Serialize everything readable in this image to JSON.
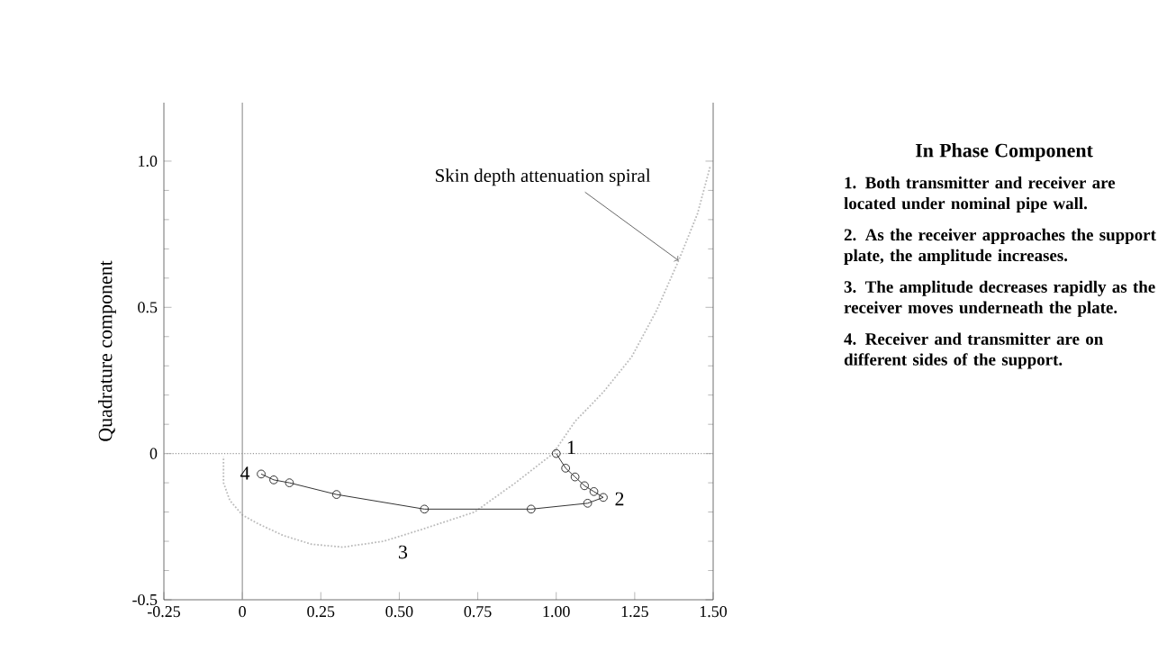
{
  "chart_data": {
    "type": "line",
    "ylabel": "Quadrature component",
    "xlim": [
      -0.25,
      1.5
    ],
    "ylim": [
      -0.5,
      1.2
    ],
    "xticks": [
      -0.25,
      0,
      0.25,
      {
        "value": 0.5,
        "label": "0.50"
      },
      0.75,
      {
        "value": 1,
        "label": "1.00"
      },
      1.25,
      {
        "value": 1.5,
        "label": "1.50"
      }
    ],
    "yticks": [
      -0.5,
      0,
      0.5,
      {
        "value": 1,
        "label": "1.0"
      }
    ],
    "grid": false,
    "series": [
      {
        "color": "#bbbbbb",
        "marker": "none",
        "line_style": "dotted",
        "x": [
          1.49,
          1.45,
          1.39,
          1.32,
          1.24,
          1.15,
          1.06,
          0.99,
          0.87,
          0.74,
          0.57,
          0.45,
          0.32,
          0.22,
          0.13,
          0.05,
          0.0,
          -0.04,
          -0.06,
          -0.06
        ],
        "values": [
          0.98,
          0.82,
          0.66,
          0.49,
          0.33,
          0.21,
          0.11,
          0.0,
          -0.1,
          -0.2,
          -0.26,
          -0.3,
          -0.32,
          -0.31,
          -0.28,
          -0.24,
          -0.21,
          -0.16,
          -0.1,
          -0.01
        ]
      },
      {
        "color": "#333333",
        "marker": "circle",
        "line_style": "solid",
        "x": [
          1.0,
          1.03,
          1.06,
          1.09,
          1.12,
          1.15,
          1.1,
          0.92,
          0.58,
          0.3,
          0.15,
          0.1,
          0.06
        ],
        "values": [
          0.0,
          -0.05,
          -0.08,
          -0.11,
          -0.13,
          -0.15,
          -0.17,
          -0.19,
          -0.19,
          -0.14,
          -0.1,
          -0.09,
          -0.07
        ]
      }
    ],
    "ref_lines": [
      {
        "axis": "x",
        "value": 0,
        "color": "#999999",
        "line_style": "solid"
      },
      {
        "axis": "y",
        "value": 0,
        "color": "#999999",
        "line_style": "dotted"
      }
    ],
    "annotations": [
      {
        "text": "Skin depth attenuation spiral",
        "x": 1.39,
        "y": 0.66
      },
      {
        "text": "1",
        "x": 1.0,
        "y": 0.0
      },
      {
        "text": "2",
        "x": 1.15,
        "y": -0.15
      },
      {
        "text": "3",
        "x": 0.55,
        "y": -0.3
      },
      {
        "text": "4",
        "x": 0.06,
        "y": -0.07
      },
      "In Phase Component",
      "1. Both transmitter and receiver are located under nominal pipe wall.",
      "2. As the receiver approaches the support plate, the amplitude increases.",
      "3. The amplitude decreases rapidly as the receiver moves underneath the plate.",
      "4. Receiver and transmitter are on different sides of the support."
    ]
  }
}
